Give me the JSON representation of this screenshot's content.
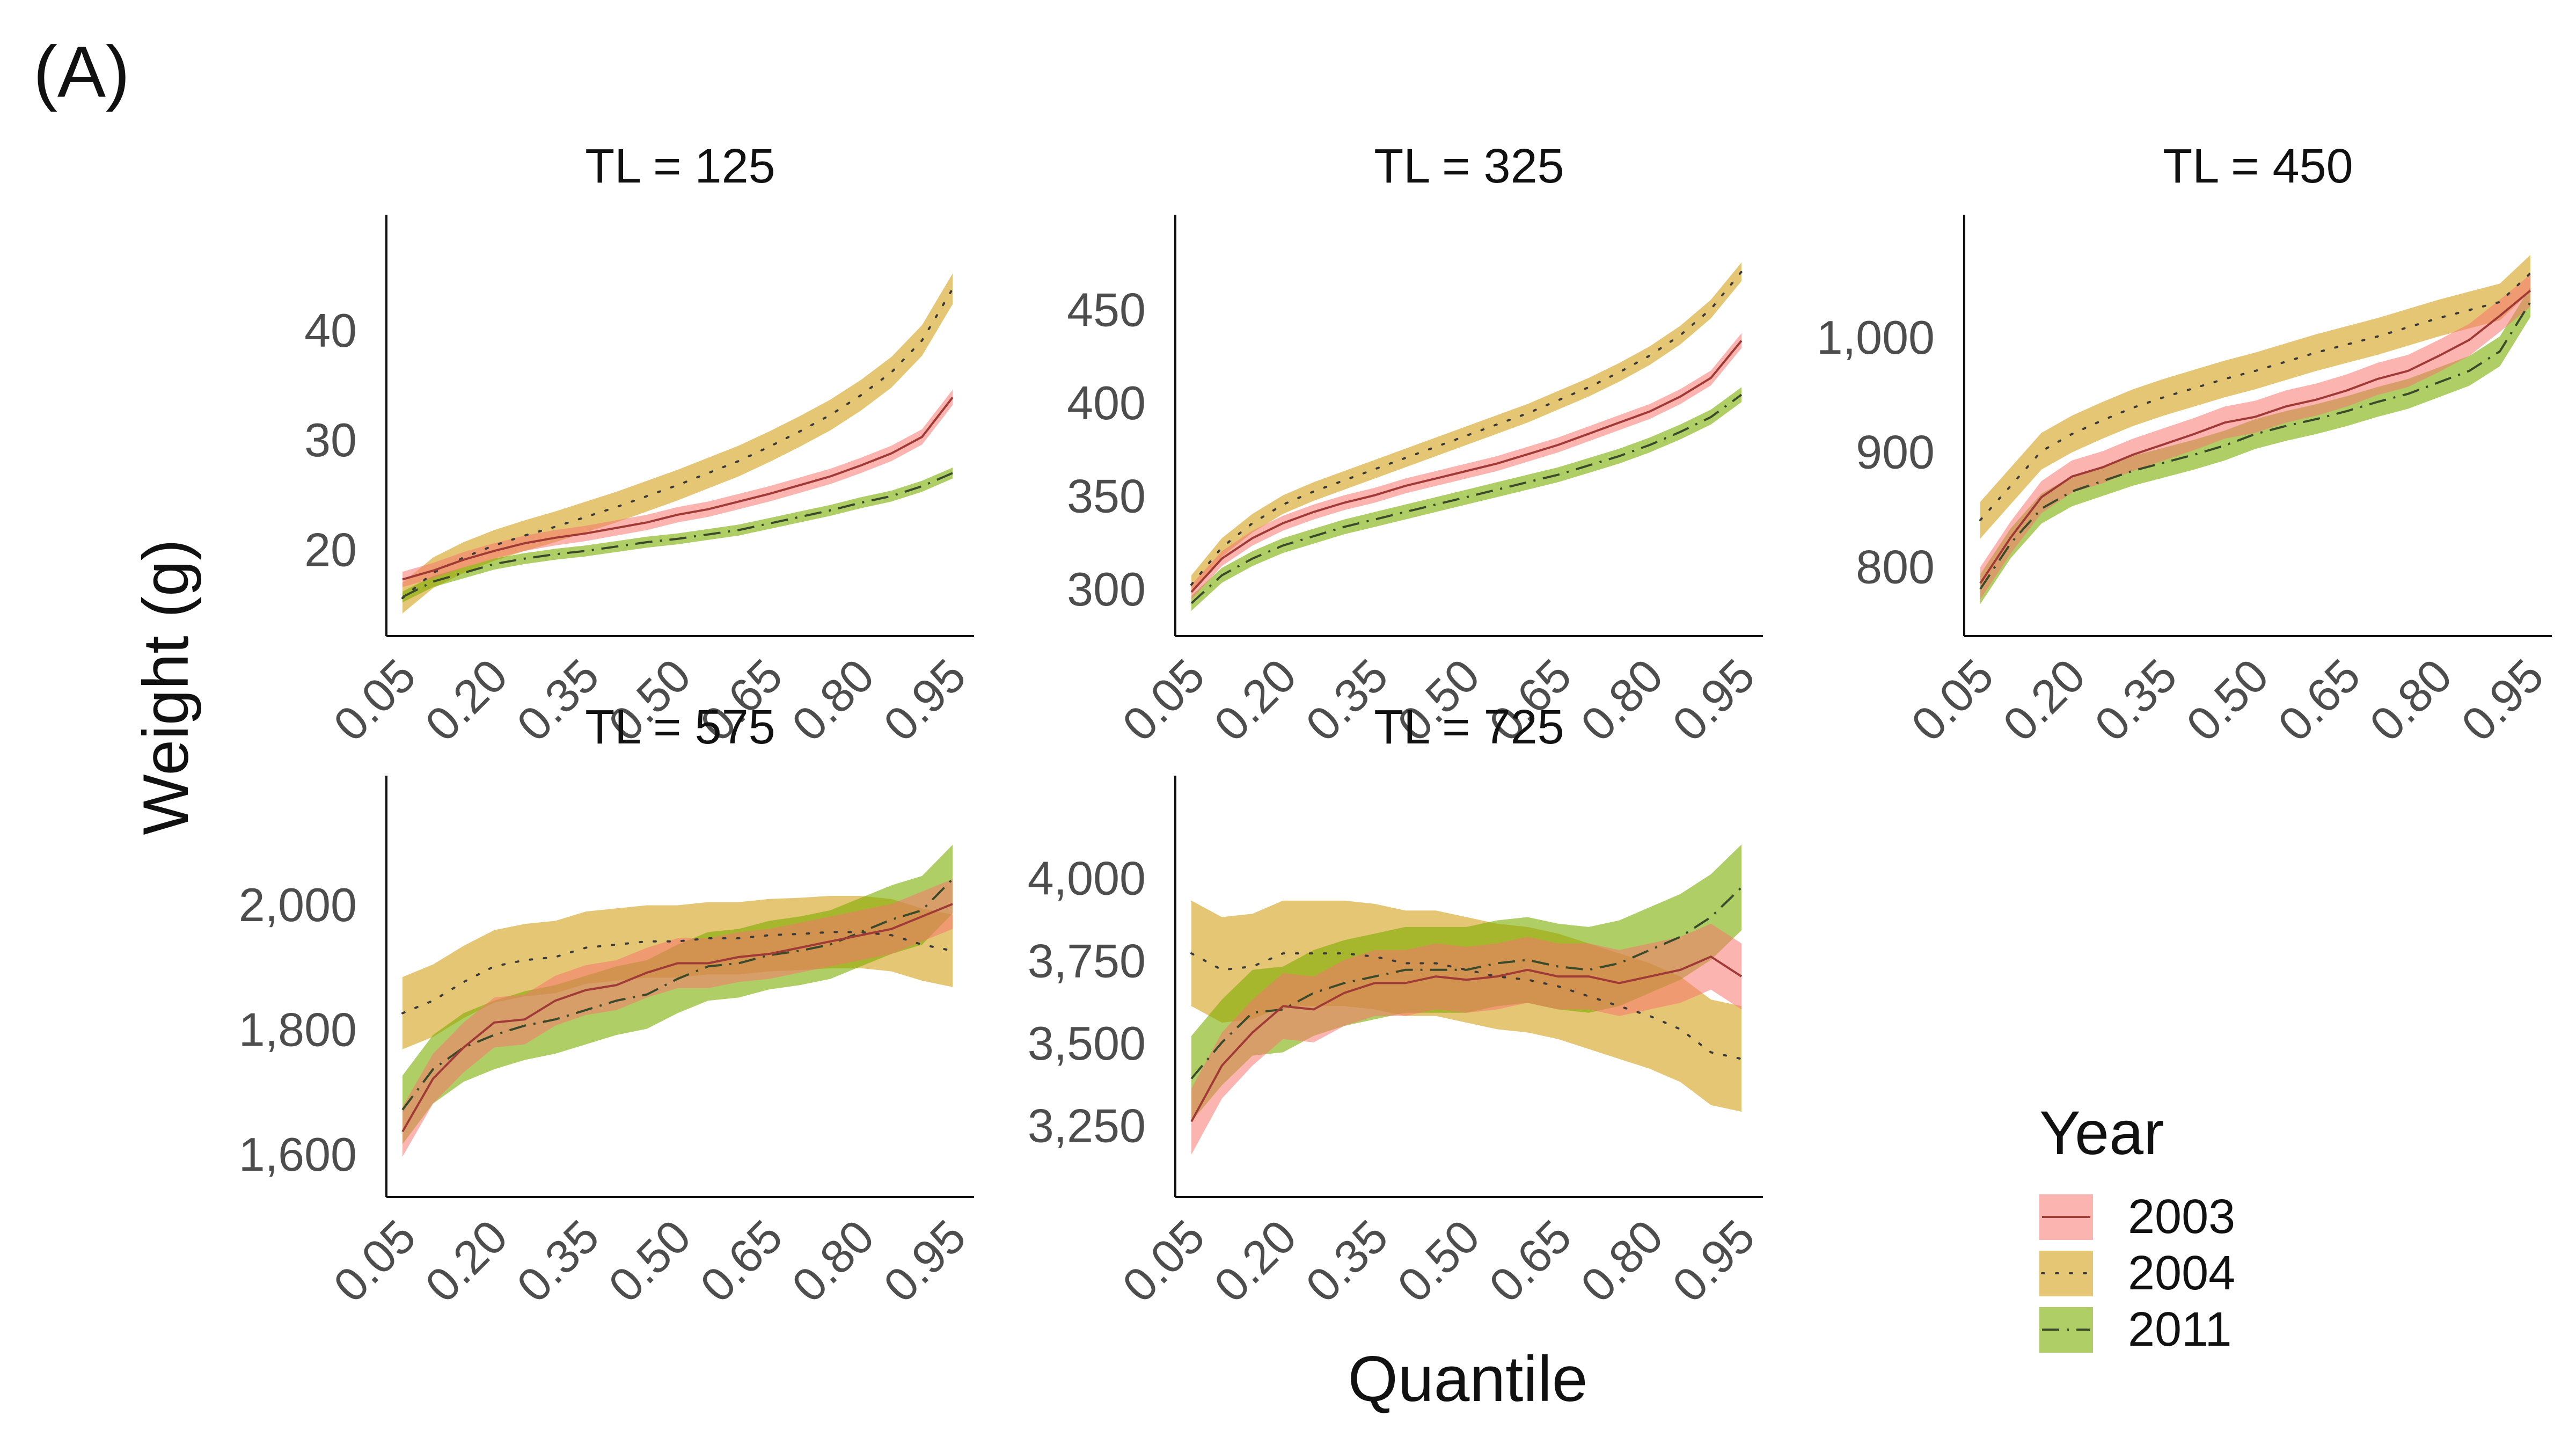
{
  "figure": {
    "panel_label": "(A)",
    "ylabel": "Weight (g)",
    "xlabel": "Quantile"
  },
  "legend": {
    "title": "Year",
    "items": [
      {
        "label": "2003",
        "color": "#f8766d",
        "line": "solid"
      },
      {
        "label": "2004",
        "color": "#d4a017",
        "line": "dotted"
      },
      {
        "label": "2011",
        "color": "#7cae00",
        "line": "dashdot"
      }
    ]
  },
  "chart_data": [
    {
      "type": "line",
      "title": "TL = 125",
      "x": [
        0.05,
        0.1,
        0.15,
        0.2,
        0.25,
        0.3,
        0.35,
        0.4,
        0.45,
        0.5,
        0.55,
        0.6,
        0.65,
        0.7,
        0.75,
        0.8,
        0.85,
        0.9,
        0.95
      ],
      "xticks": [
        "0.05",
        "0.20",
        "0.35",
        "0.50",
        "0.65",
        "0.80",
        "0.95"
      ],
      "yticks": [
        {
          "value": 20,
          "label": "20"
        },
        {
          "value": 30,
          "label": "30"
        },
        {
          "value": 40,
          "label": "40"
        }
      ],
      "ylim": [
        13.5,
        49
      ],
      "series": [
        {
          "name": "2003",
          "values": [
            17.2,
            18.0,
            19.0,
            19.8,
            20.5,
            21.0,
            21.4,
            21.9,
            22.4,
            23.1,
            23.6,
            24.3,
            25.0,
            25.8,
            26.6,
            27.6,
            28.7,
            30.2,
            33.8
          ],
          "band": 0.7
        },
        {
          "name": "2004",
          "values": [
            15.5,
            17.8,
            19.2,
            20.3,
            21.2,
            22.0,
            22.9,
            23.8,
            24.8,
            25.8,
            26.9,
            28.0,
            29.3,
            30.7,
            32.2,
            34.0,
            36.1,
            39.0,
            43.7
          ],
          "band": 1.4
        },
        {
          "name": "2011",
          "values": [
            15.6,
            17.0,
            17.8,
            18.6,
            19.1,
            19.5,
            19.8,
            20.2,
            20.6,
            20.9,
            21.3,
            21.7,
            22.3,
            22.9,
            23.5,
            24.2,
            24.8,
            25.7,
            26.9
          ],
          "band": 0.5
        }
      ]
    },
    {
      "type": "line",
      "title": "TL = 325",
      "x": [
        0.05,
        0.1,
        0.15,
        0.2,
        0.25,
        0.3,
        0.35,
        0.4,
        0.45,
        0.5,
        0.55,
        0.6,
        0.65,
        0.7,
        0.75,
        0.8,
        0.85,
        0.9,
        0.95
      ],
      "xticks": [
        "0.05",
        "0.20",
        "0.35",
        "0.50",
        "0.65",
        "0.80",
        "0.95"
      ],
      "yticks": [
        {
          "value": 300,
          "label": "300"
        },
        {
          "value": 350,
          "label": "350"
        },
        {
          "value": 400,
          "label": "400"
        },
        {
          "value": 450,
          "label": "450"
        }
      ],
      "ylim": [
        283,
        492
      ],
      "series": [
        {
          "name": "2003",
          "values": [
            298,
            316,
            327,
            335,
            341,
            346,
            350,
            355,
            359,
            363,
            367,
            372,
            377,
            383,
            389,
            395,
            403,
            413,
            433
          ],
          "band": 4
        },
        {
          "name": "2004",
          "values": [
            302,
            322,
            335,
            345,
            352,
            358,
            364,
            370,
            376,
            382,
            388,
            394,
            401,
            408,
            416,
            425,
            436,
            450,
            470
          ],
          "band": 5
        },
        {
          "name": "2011",
          "values": [
            292,
            307,
            316,
            323,
            328,
            333,
            337,
            341,
            345,
            349,
            353,
            357,
            361,
            366,
            371,
            377,
            384,
            392,
            404
          ],
          "band": 4
        }
      ]
    },
    {
      "type": "line",
      "title": "TL = 450",
      "x": [
        0.05,
        0.1,
        0.15,
        0.2,
        0.25,
        0.3,
        0.35,
        0.4,
        0.45,
        0.5,
        0.55,
        0.6,
        0.65,
        0.7,
        0.75,
        0.8,
        0.85,
        0.9,
        0.95
      ],
      "xticks": [
        "0.05",
        "0.20",
        "0.35",
        "0.50",
        "0.65",
        "0.80",
        "0.95"
      ],
      "yticks": [
        {
          "value": 800,
          "label": "800"
        },
        {
          "value": 900,
          "label": "900"
        },
        {
          "value": 1000,
          "label": "1,000"
        }
      ],
      "ylim": [
        753,
        1092
      ],
      "series": [
        {
          "name": "2003",
          "values": [
            785,
            825,
            860,
            878,
            886,
            897,
            906,
            915,
            925,
            930,
            939,
            945,
            953,
            963,
            970,
            983,
            997,
            1018,
            1040
          ],
          "band": 14
        },
        {
          "name": "2004",
          "values": [
            840,
            870,
            900,
            915,
            927,
            938,
            947,
            955,
            963,
            970,
            978,
            986,
            993,
            1000,
            1008,
            1016,
            1023,
            1030,
            1055
          ],
          "band": 16
        },
        {
          "name": "2011",
          "values": [
            780,
            820,
            850,
            865,
            874,
            883,
            890,
            897,
            905,
            915,
            922,
            928,
            935,
            943,
            950,
            960,
            970,
            987,
            1030
          ],
          "band": 13
        }
      ]
    },
    {
      "type": "line",
      "title": "TL = 575",
      "x": [
        0.05,
        0.1,
        0.15,
        0.2,
        0.25,
        0.3,
        0.35,
        0.4,
        0.45,
        0.5,
        0.55,
        0.6,
        0.65,
        0.7,
        0.75,
        0.8,
        0.85,
        0.9,
        0.95
      ],
      "xticks": [
        "0.05",
        "0.20",
        "0.35",
        "0.50",
        "0.65",
        "0.80",
        "0.95"
      ],
      "yticks": [
        {
          "value": 1600,
          "label": "1,600"
        },
        {
          "value": 1800,
          "label": "1,800"
        },
        {
          "value": 2000,
          "label": "2,000"
        }
      ],
      "ylim": [
        1556,
        2180
      ],
      "series": [
        {
          "name": "2003",
          "values": [
            1635,
            1720,
            1770,
            1810,
            1815,
            1845,
            1862,
            1870,
            1890,
            1905,
            1905,
            1915,
            1920,
            1930,
            1940,
            1950,
            1960,
            1980,
            2000
          ],
          "band": 40
        },
        {
          "name": "2004",
          "values": [
            1825,
            1845,
            1875,
            1900,
            1910,
            1915,
            1930,
            1935,
            1940,
            1940,
            1945,
            1945,
            1950,
            1952,
            1955,
            1955,
            1950,
            1935,
            1925
          ],
          "band": 58
        },
        {
          "name": "2011",
          "values": [
            1670,
            1735,
            1770,
            1790,
            1805,
            1815,
            1830,
            1845,
            1855,
            1880,
            1900,
            1905,
            1918,
            1925,
            1935,
            1955,
            1975,
            1990,
            2040
          ],
          "band": 55
        }
      ]
    },
    {
      "type": "line",
      "title": "TL = 725",
      "x": [
        0.05,
        0.1,
        0.15,
        0.2,
        0.25,
        0.3,
        0.35,
        0.4,
        0.45,
        0.5,
        0.55,
        0.6,
        0.65,
        0.7,
        0.75,
        0.8,
        0.85,
        0.9,
        0.95
      ],
      "xticks": [
        "0.05",
        "0.20",
        "0.35",
        "0.50",
        "0.65",
        "0.80",
        "0.95"
      ],
      "yticks": [
        {
          "value": 3250,
          "label": "3,250"
        },
        {
          "value": 3500,
          "label": "3,500"
        },
        {
          "value": 3750,
          "label": "3,750"
        },
        {
          "value": 4000,
          "label": "4,000"
        }
      ],
      "ylim": [
        3080,
        4260
      ],
      "series": [
        {
          "name": "2003",
          "values": [
            3260,
            3430,
            3530,
            3610,
            3600,
            3650,
            3680,
            3680,
            3700,
            3690,
            3700,
            3720,
            3700,
            3700,
            3680,
            3700,
            3720,
            3760,
            3700
          ],
          "band": 100
        },
        {
          "name": "2004",
          "values": [
            3770,
            3720,
            3730,
            3770,
            3770,
            3770,
            3760,
            3740,
            3740,
            3720,
            3700,
            3690,
            3670,
            3640,
            3610,
            3580,
            3540,
            3470,
            3450
          ],
          "band": 160
        },
        {
          "name": "2011",
          "values": [
            3390,
            3500,
            3590,
            3600,
            3650,
            3680,
            3700,
            3720,
            3720,
            3720,
            3740,
            3750,
            3730,
            3720,
            3740,
            3780,
            3820,
            3880,
            3970
          ],
          "band": 130
        }
      ]
    }
  ]
}
